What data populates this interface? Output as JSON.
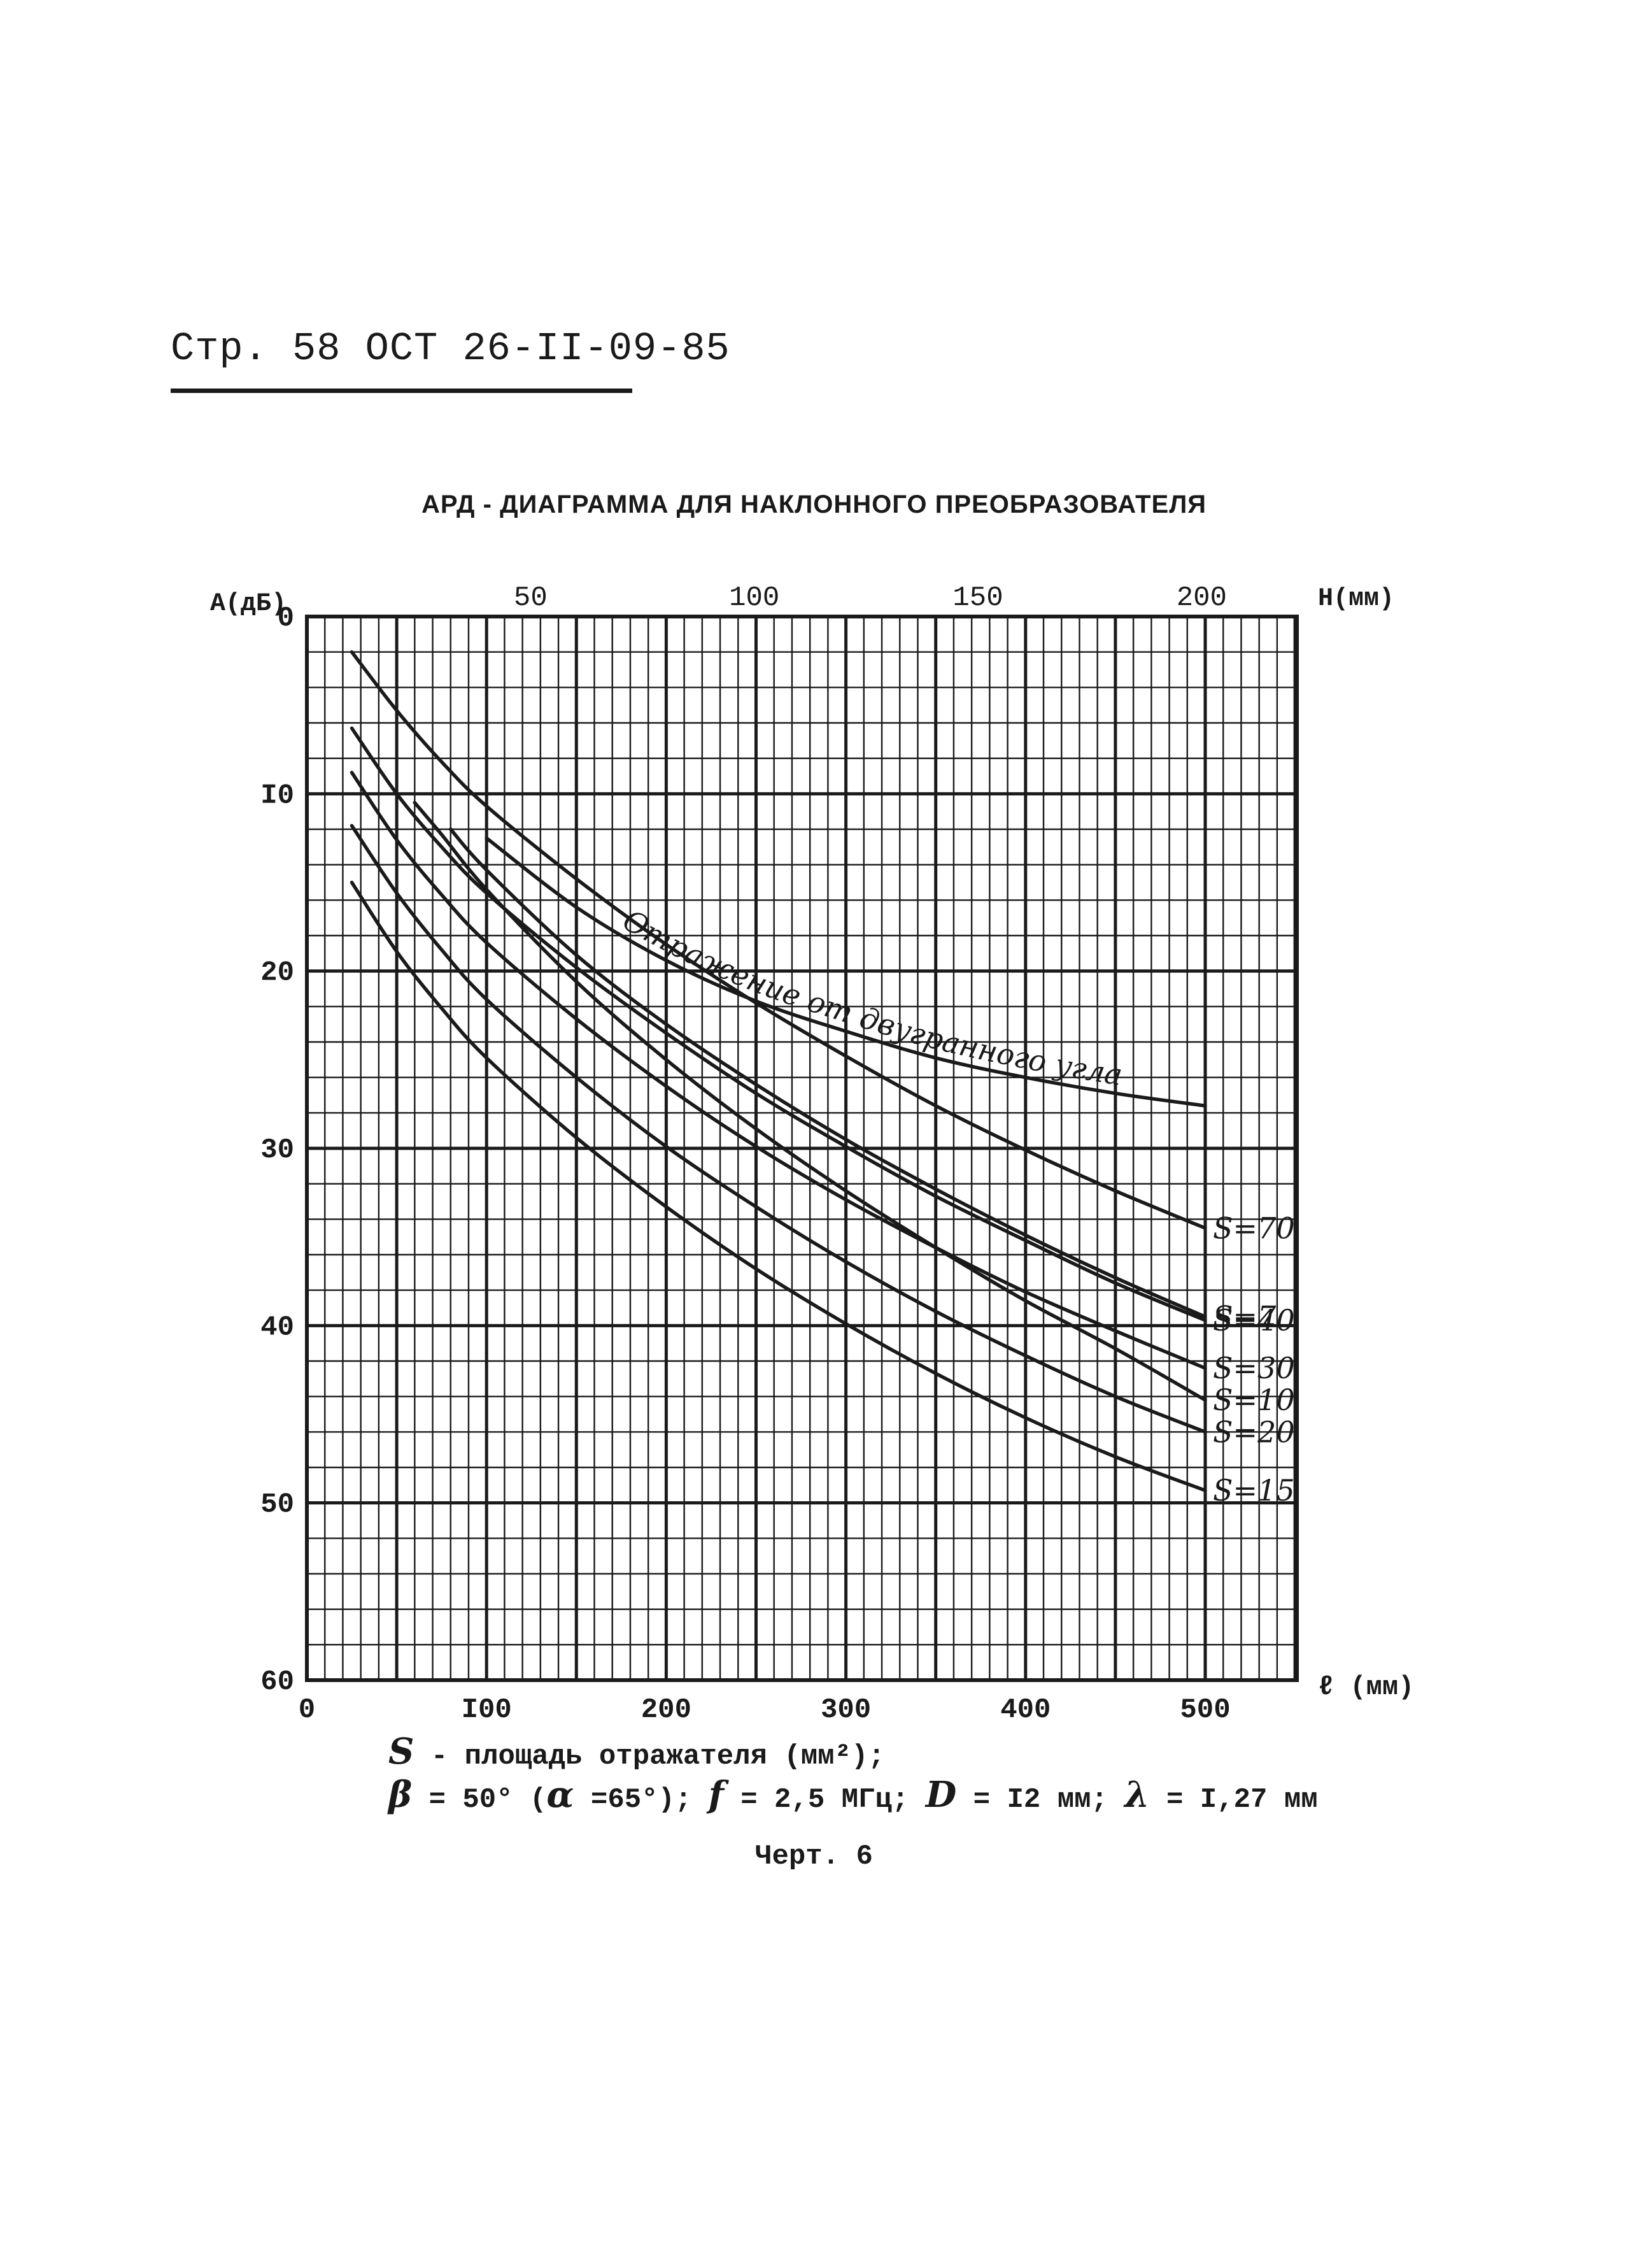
{
  "header": {
    "text": "Стр. 58 ОСТ 26-II-09-85"
  },
  "title": "АРД - ДИАГРАММА ДЛЯ НАКЛОННОГО ПРЕОБРАЗОВАТЕЛЯ",
  "legend": {
    "line1_symbol": "S",
    "line1_text": " - площадь отражателя (мм²);",
    "line2_beta": "β",
    "line2_beta_text": " = 50° (",
    "line2_alpha": "α",
    "line2_alpha_text": " =65°);  ",
    "line2_f": "f",
    "line2_f_text": " = 2,5 МГц;  ",
    "line2_d": "D",
    "line2_d_text": " = I2 мм;   ",
    "line2_lambda": "λ",
    "line2_lambda_text": " = I,27 мм"
  },
  "caption": "Черт. 6",
  "chart_data": {
    "type": "line",
    "ylabel": "A(дБ)",
    "xlabel": "ℓ (мм)",
    "x2label": "H(мм)",
    "xlim": [
      0,
      550
    ],
    "ylim": [
      0,
      60
    ],
    "y_inverted": true,
    "xticks": [
      0,
      100,
      200,
      300,
      400,
      500
    ],
    "xtick_labels": [
      "0",
      "I00",
      "200",
      "300",
      "400",
      "500"
    ],
    "x2ticks_in_x_units": [
      0,
      124.5,
      249,
      373.5,
      498
    ],
    "x2tick_labels": [
      "0",
      "50",
      "100",
      "150",
      "200"
    ],
    "yticks": [
      0,
      10,
      20,
      30,
      40,
      50,
      60
    ],
    "ytick_labels": [
      "0",
      "I0",
      "20",
      "30",
      "40",
      "50",
      "60"
    ],
    "grid": true,
    "series": [
      {
        "name": "S=70",
        "label": "S=70",
        "x": [
          25,
          50,
          75,
          100,
          150,
          200,
          250,
          300,
          350,
          400,
          450,
          500
        ],
        "y": [
          2.0,
          5.3,
          8.2,
          10.7,
          14.8,
          18.5,
          21.8,
          24.8,
          27.6,
          30.1,
          32.4,
          34.5
        ]
      },
      {
        "name": "S=40",
        "label": "S=40",
        "x": [
          25,
          50,
          75,
          100,
          150,
          200,
          250,
          300,
          350,
          400,
          450,
          500
        ],
        "y": [
          6.3,
          10.0,
          13.0,
          15.6,
          19.8,
          23.5,
          26.9,
          29.9,
          32.7,
          35.2,
          37.6,
          39.7
        ]
      },
      {
        "name": "S=30",
        "label": "S=30",
        "x": [
          25,
          50,
          75,
          100,
          150,
          200,
          250,
          300,
          350,
          400,
          450,
          500
        ],
        "y": [
          8.8,
          12.6,
          15.7,
          18.4,
          22.7,
          26.5,
          29.9,
          32.9,
          35.6,
          38.1,
          40.3,
          42.4
        ]
      },
      {
        "name": "S=20",
        "label": "S=20",
        "x": [
          25,
          50,
          75,
          100,
          150,
          200,
          250,
          300,
          350,
          400,
          450,
          500
        ],
        "y": [
          11.8,
          15.6,
          18.8,
          21.6,
          26.0,
          29.9,
          33.3,
          36.4,
          39.2,
          41.7,
          44.0,
          46.0
        ]
      },
      {
        "name": "S=15",
        "label": "S=15",
        "x": [
          25,
          50,
          75,
          100,
          150,
          200,
          250,
          300,
          350,
          400,
          450,
          500
        ],
        "y": [
          15.0,
          18.9,
          22.1,
          24.9,
          29.4,
          33.3,
          36.8,
          39.9,
          42.7,
          45.2,
          47.4,
          49.3
        ]
      },
      {
        "name": "S=10",
        "label": "S=10",
        "x": [
          60,
          75,
          100,
          150,
          200,
          250,
          300,
          350,
          400,
          450,
          500
        ],
        "y": [
          10.5,
          12.3,
          15.4,
          20.6,
          25.0,
          28.9,
          32.4,
          35.6,
          38.6,
          41.3,
          44.2
        ]
      },
      {
        "name": "S=7",
        "label": "S=7",
        "x": [
          80,
          100,
          150,
          200,
          250,
          300,
          350,
          400,
          450,
          500
        ],
        "y": [
          12.0,
          14.3,
          19.1,
          23.0,
          26.4,
          29.5,
          32.3,
          34.9,
          37.3,
          39.5
        ]
      },
      {
        "name": "Отражение от двугранного угла",
        "label": "Отражение от двугранного угла",
        "x": [
          100,
          150,
          200,
          250,
          300,
          350,
          400,
          450,
          500
        ],
        "y": [
          12.5,
          16.4,
          19.4,
          21.7,
          23.4,
          24.9,
          26.0,
          26.9,
          27.6
        ]
      }
    ]
  }
}
